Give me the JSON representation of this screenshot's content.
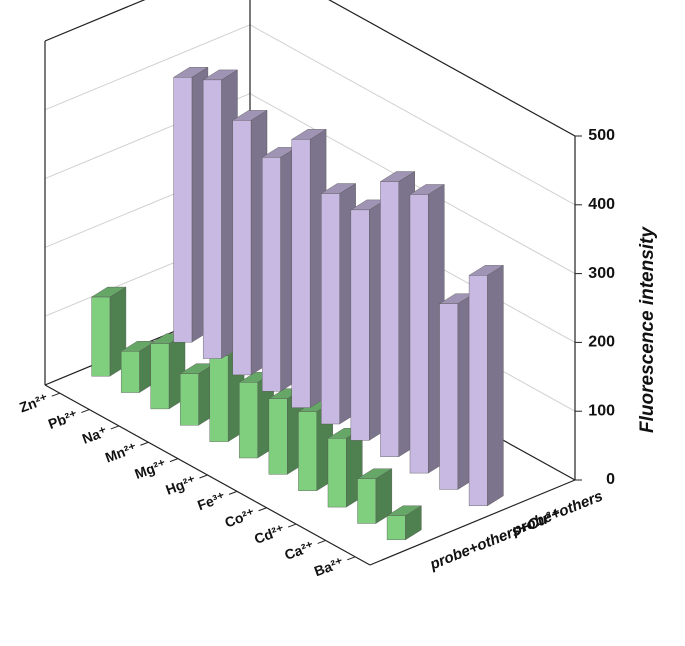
{
  "chart_data": {
    "type": "bar3d",
    "y_label": "Fluorescence intensity",
    "categories": [
      "Zn²⁺",
      "Pb²⁺",
      "Na⁺",
      "Mn²⁺",
      "Mg²⁺",
      "Hg²⁺",
      "Fe³⁺",
      "Co²⁺",
      "Cd²⁺",
      "Ca²⁺",
      "Ba²⁺"
    ],
    "series": [
      {
        "name": "probe+others",
        "color": "#c8b9e2",
        "values": [
          385,
          405,
          370,
          340,
          390,
          335,
          335,
          400,
          405,
          270,
          335
        ]
      },
      {
        "name": "probe+others+Cu²⁺",
        "color": "#7fcf7f",
        "values": [
          115,
          60,
          95,
          75,
          125,
          110,
          110,
          115,
          100,
          65,
          35
        ]
      }
    ],
    "ylim": [
      0,
      500
    ],
    "yticks": [
      0,
      100,
      200,
      300,
      400,
      500
    ],
    "grid": true
  }
}
